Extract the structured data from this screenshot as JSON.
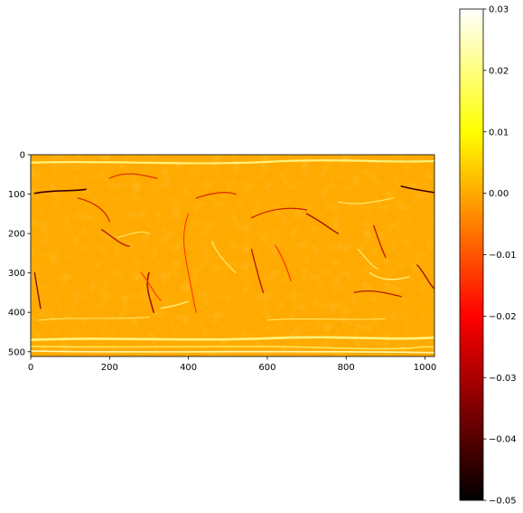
{
  "chart_data": {
    "type": "heatmap",
    "title": "",
    "xlabel": "",
    "ylabel": "",
    "colormap": "hot",
    "image_extent_x": [
      0,
      1024
    ],
    "image_extent_y": [
      512,
      0
    ],
    "x_ticks": [
      0,
      200,
      400,
      600,
      800,
      1000
    ],
    "y_ticks": [
      0,
      100,
      200,
      300,
      400,
      500
    ],
    "colorbar": {
      "range": [
        -0.05,
        0.03
      ],
      "ticks": [
        0.03,
        0.02,
        0.01,
        0.0,
        -0.01,
        -0.02,
        -0.03,
        -0.04,
        -0.05
      ],
      "tick_labels": [
        "0.03",
        "0.02",
        "0.01",
        "0.00",
        "−0.01",
        "−0.02",
        "−0.03",
        "−0.04",
        "−0.05"
      ]
    },
    "background_value": 0.0
  }
}
